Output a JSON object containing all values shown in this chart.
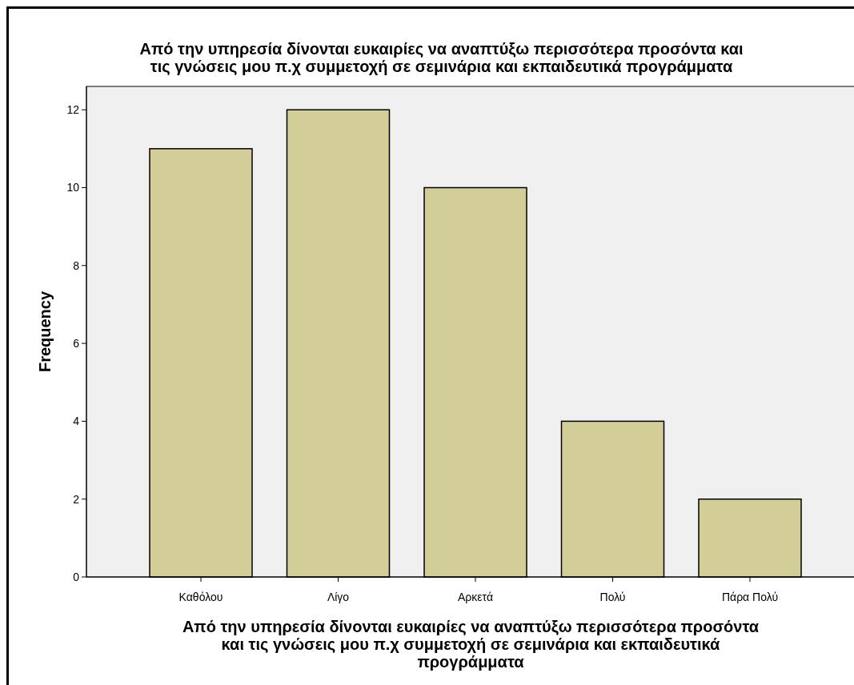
{
  "chart_data": {
    "type": "bar",
    "title": "Από την υπηρεσία δίνονται ευκαιρίες να αναπτύξω περισσότερα προσόντα και\nτις γνώσεις μου π.χ συμμετοχή σε σεμινάρια και εκπαιδευτικά προγράμματα",
    "xlabel": "Από την υπηρεσία δίνονται ευκαιρίες να αναπτύξω περισσότερα προσόντα\nκαι τις γνώσεις μου π.χ συμμετοχή σε σεμινάρια και εκπαιδευτικά\nπρογράμματα",
    "ylabel": "Frequency",
    "categories": [
      "Καθόλου",
      "Λίγο",
      "Αρκετά",
      "Πολύ",
      "Πάρα Πολύ"
    ],
    "values": [
      11,
      12,
      10,
      4,
      2
    ],
    "color": "#d3ce97",
    "ylim": [
      0,
      12.6
    ],
    "yticks": [
      0,
      2,
      4,
      6,
      8,
      10,
      12
    ],
    "grid": false
  }
}
